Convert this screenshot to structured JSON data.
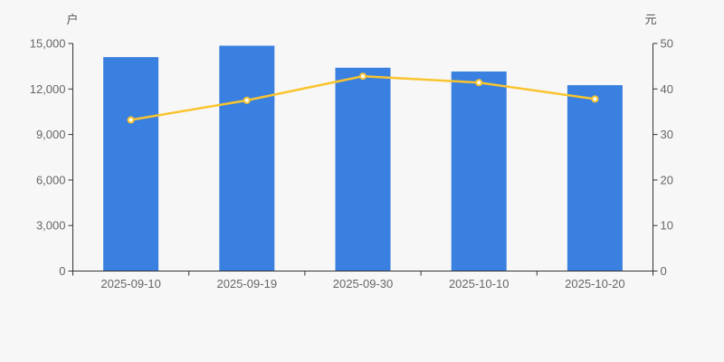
{
  "page": {
    "background_color": "#f7f7f7",
    "axis_line_color": "#333333",
    "tick_label_color": "#666666",
    "axis_title_color": "#555555"
  },
  "chart_data": {
    "type": "bar",
    "subtype": "bar-with-line-overlay-dual-axis",
    "title": "",
    "grid": false,
    "legend_visible": false,
    "categories": [
      "2025-09-10",
      "2025-09-19",
      "2025-09-30",
      "2025-10-10",
      "2025-10-20"
    ],
    "series": [
      {
        "name": "bar-series",
        "type": "bar",
        "axis": "left",
        "values": [
          14100,
          14850,
          13400,
          13150,
          12250
        ],
        "color": "#3a80e0"
      },
      {
        "name": "line-series",
        "type": "line",
        "axis": "right",
        "values": [
          33.2,
          37.5,
          42.8,
          41.4,
          37.8
        ],
        "color": "#f9c42e",
        "marker_fill": "#ffffff",
        "marker_stroke": "#f9c42e"
      }
    ],
    "left_axis": {
      "title": "户",
      "min": 0,
      "max": 15000,
      "ticks": [
        0,
        3000,
        6000,
        9000,
        12000,
        15000
      ],
      "tick_labels": [
        "0",
        "3,000",
        "6,000",
        "9,000",
        "12,000",
        "15,000"
      ]
    },
    "right_axis": {
      "title": "元",
      "min": 0,
      "max": 50,
      "ticks": [
        0,
        10,
        20,
        30,
        40,
        50
      ],
      "tick_labels": [
        "0",
        "10",
        "20",
        "30",
        "40",
        "50"
      ]
    },
    "x_axis": {
      "tick_position": "between-categories"
    }
  }
}
